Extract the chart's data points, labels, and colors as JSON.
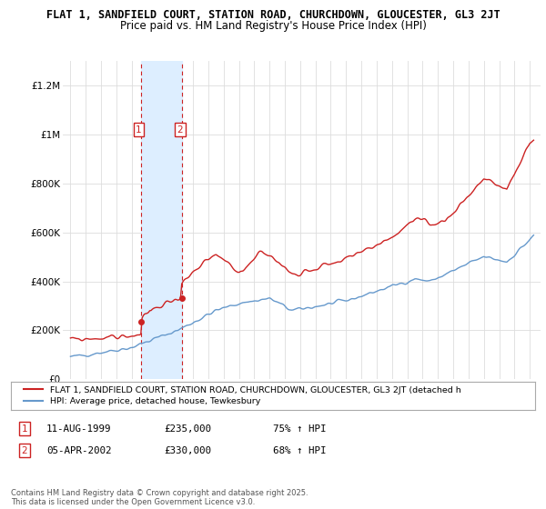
{
  "title": "FLAT 1, SANDFIELD COURT, STATION ROAD, CHURCHDOWN, GLOUCESTER, GL3 2JT",
  "subtitle": "Price paid vs. HM Land Registry's House Price Index (HPI)",
  "ylim": [
    0,
    1300000
  ],
  "yticks": [
    0,
    200000,
    400000,
    600000,
    800000,
    1000000,
    1200000
  ],
  "ytick_labels": [
    "£0",
    "£200K",
    "£400K",
    "£600K",
    "£800K",
    "£1M",
    "£1.2M"
  ],
  "background_color": "#ffffff",
  "grid_color": "#dddddd",
  "hpi_color": "#6699cc",
  "price_color": "#cc2222",
  "shade_color": "#ddeeff",
  "transaction1_date": 1999.61,
  "transaction2_date": 2002.26,
  "transaction1_price": 235000,
  "transaction2_price": 330000,
  "legend_price_label": "FLAT 1, SANDFIELD COURT, STATION ROAD, CHURCHDOWN, GLOUCESTER, GL3 2JT (detached h",
  "legend_hpi_label": "HPI: Average price, detached house, Tewkesbury",
  "table_rows": [
    {
      "num": "1",
      "date": "11-AUG-1999",
      "price": "£235,000",
      "hpi": "75% ↑ HPI"
    },
    {
      "num": "2",
      "date": "05-APR-2002",
      "price": "£330,000",
      "hpi": "68% ↑ HPI"
    }
  ],
  "footnote": "Contains HM Land Registry data © Crown copyright and database right 2025.\nThis data is licensed under the Open Government Licence v3.0."
}
